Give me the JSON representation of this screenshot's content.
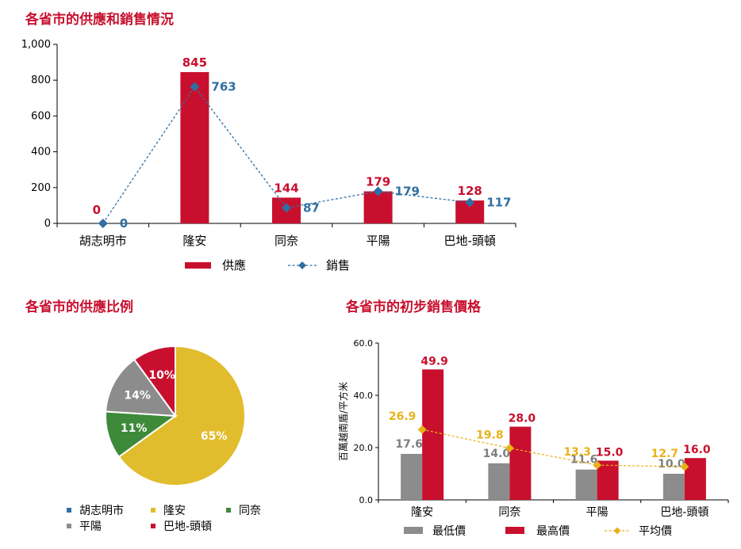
{
  "colors": {
    "title": "#c8102e",
    "supply": "#c8102e",
    "sales": "#2f6fa3",
    "longan": "#e1bd2d",
    "green": "#3d8a3a",
    "gray": "#8c8c8c",
    "avg": "#e8b21a"
  },
  "titles": {
    "top": "各省市的供應和銷售情況",
    "pie": "各省市的供應比例",
    "price": "各省市的初步銷售價格"
  },
  "chart_data": [
    {
      "type": "bar",
      "title": "各省市的供應和銷售情況",
      "categories": [
        "胡志明市",
        "隆安",
        "同奈",
        "平陽",
        "巴地-頭頓"
      ],
      "series": [
        {
          "name": "供應",
          "type": "bar",
          "values": [
            0,
            845,
            144,
            179,
            128
          ]
        },
        {
          "name": "銷售",
          "type": "line",
          "values": [
            0,
            763,
            87,
            179,
            117
          ]
        }
      ],
      "ylim": [
        0,
        1000
      ],
      "yticks": [
        "0",
        "200",
        "400",
        "600",
        "800",
        "1,000"
      ],
      "ytick_values": [
        0,
        200,
        400,
        600,
        800,
        1000
      ],
      "legend": "bottom",
      "grid": false
    },
    {
      "type": "pie",
      "title": "各省市的供應比例",
      "labels": [
        "胡志明市",
        "隆安",
        "同奈",
        "平陽",
        "巴地-頭頓"
      ],
      "values": [
        0,
        65,
        11,
        14,
        10
      ],
      "value_labels": [
        "",
        "65%",
        "11%",
        "14%",
        "10%"
      ],
      "colors": [
        "#2f6fa3",
        "#e1bd2d",
        "#3d8a3a",
        "#8c8c8c",
        "#c8102e"
      ],
      "legend": "bottom"
    },
    {
      "type": "bar",
      "title": "各省市的初步銷售價格",
      "ylabel": "百萬越南盾/平方米",
      "categories": [
        "隆安",
        "同奈",
        "平陽",
        "巴地-頭頓"
      ],
      "series": [
        {
          "name": "最低價",
          "type": "bar",
          "values": [
            17.6,
            14.0,
            11.6,
            10.0
          ],
          "labels": [
            "17.6",
            "14.0",
            "11.6",
            "10.0"
          ]
        },
        {
          "name": "最高價",
          "type": "bar",
          "values": [
            49.9,
            28.0,
            15.0,
            16.0
          ],
          "labels": [
            "49.9",
            "28.0",
            "15.0",
            "16.0"
          ]
        },
        {
          "name": "平均價",
          "type": "line",
          "values": [
            26.9,
            19.8,
            13.3,
            12.7
          ],
          "labels": [
            "26.9",
            "19.8",
            "13.3",
            "12.7"
          ]
        }
      ],
      "ylim": [
        0,
        60
      ],
      "yticks": [
        "0.0",
        "20.0",
        "40.0",
        "60.0"
      ],
      "ytick_values": [
        0,
        20,
        40,
        60
      ],
      "legend": "bottom",
      "grid": false
    }
  ]
}
